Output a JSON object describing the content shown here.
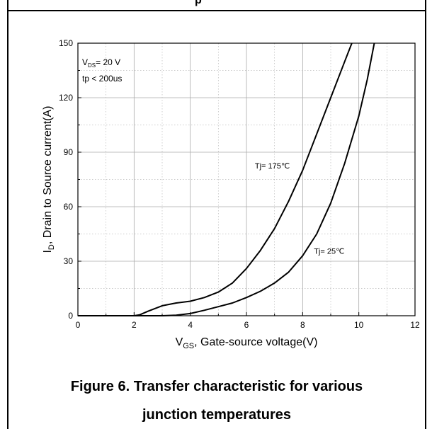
{
  "page": {
    "header_fragment": "p",
    "caption_line1": "Figure 6. Transfer characteristic for various",
    "caption_line2": "junction temperatures"
  },
  "chart_data": {
    "type": "line",
    "xlabel": "V",
    "xlabel_sub": "GS",
    "xlabel_rest": ", Gate-source voltage(V)",
    "ylabel": "I",
    "ylabel_sub": "D",
    "ylabel_rest": ", Drain to Source current(A)",
    "xlim": [
      0,
      12
    ],
    "ylim": [
      0,
      150
    ],
    "xticks": [
      0,
      2,
      4,
      6,
      8,
      10,
      12
    ],
    "yticks": [
      0,
      30,
      60,
      90,
      120,
      150
    ],
    "grid": true,
    "conditions": {
      "line1_main": "V",
      "line1_sub": "DS",
      "line1_rest": "= 20 V",
      "line2": "tp < 200us"
    },
    "series": [
      {
        "name": "Tj= 175℃",
        "label_at": [
          6.3,
          81
        ],
        "x": [
          0,
          1.0,
          2.0,
          2.2,
          2.5,
          3.0,
          3.5,
          4.0,
          4.5,
          5.0,
          5.5,
          6.0,
          6.5,
          7.0,
          7.5,
          8.0,
          8.5,
          9.0,
          9.5,
          9.75
        ],
        "y": [
          0,
          0,
          0,
          0.5,
          2.5,
          5.5,
          7,
          8,
          10,
          13,
          18,
          26,
          36,
          48,
          63,
          80,
          100,
          120,
          140,
          150
        ]
      },
      {
        "name": "Tj= 25℃",
        "label_at": [
          8.4,
          34
        ],
        "x": [
          0,
          2.0,
          3.0,
          3.5,
          4.0,
          4.5,
          5.0,
          5.5,
          6.0,
          6.5,
          7.0,
          7.5,
          8.0,
          8.5,
          9.0,
          9.5,
          10.0,
          10.3,
          10.55
        ],
        "y": [
          0,
          0,
          0,
          0.3,
          1.2,
          3,
          5,
          7,
          10,
          13.5,
          18,
          24,
          33,
          45,
          62,
          84,
          110,
          130,
          150
        ]
      }
    ]
  }
}
